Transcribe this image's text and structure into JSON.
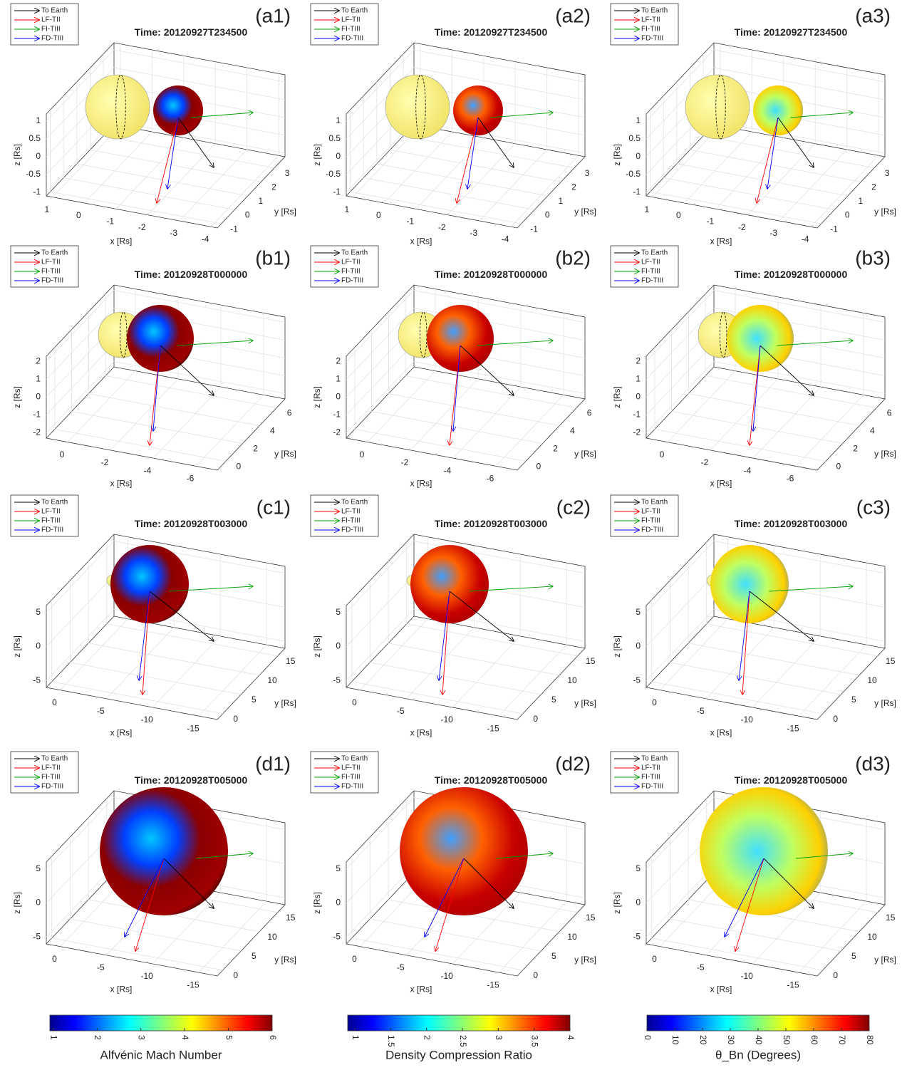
{
  "chart_data": [
    {
      "type": "sphere3d",
      "panel_label": "(a1)",
      "title": "Time: 20120927T234500",
      "series": [
        {
          "name": "To Earth",
          "color": "#000000"
        },
        {
          "name": "LF-TII",
          "color": "#ff0000"
        },
        {
          "name": "FI-TIII",
          "color": "#00a000"
        },
        {
          "name": "FD-TIII",
          "color": "#0000ff"
        }
      ],
      "xlabel": "x [Rs]",
      "ylabel": "y [Rs]",
      "zlabel": "z [Rs]",
      "xlim": [
        1.2,
        -4.2
      ],
      "xticks": [
        1,
        0,
        -1,
        -2,
        -3,
        -4
      ],
      "ylim": [
        -1.3,
        3.8
      ],
      "yticks": [
        -1,
        0,
        1,
        2,
        3
      ],
      "zlim": [
        -1.1,
        1.2
      ],
      "zticks": [
        -1,
        -0.5,
        0,
        0.5,
        1
      ]
    },
    {
      "type": "sphere3d",
      "panel_label": "(a2)",
      "title": "Time: 20120927T234500",
      "series": [
        {
          "name": "To Earth",
          "color": "#000000"
        },
        {
          "name": "LF-TII",
          "color": "#ff0000"
        },
        {
          "name": "FI-TIII",
          "color": "#00a000"
        },
        {
          "name": "FD-TIII",
          "color": "#0000ff"
        }
      ],
      "xlabel": "x [Rs]",
      "ylabel": "y [Rs]",
      "zlabel": "z [Rs]",
      "xlim": [
        1.2,
        -4.2
      ],
      "xticks": [
        1,
        0,
        -1,
        -2,
        -3,
        -4
      ],
      "ylim": [
        -1.3,
        3.8
      ],
      "yticks": [
        -1,
        0,
        1,
        2,
        3
      ],
      "zlim": [
        -1.1,
        1.2
      ],
      "zticks": [
        -1,
        -0.5,
        0,
        0.5,
        1
      ]
    },
    {
      "type": "sphere3d",
      "panel_label": "(a3)",
      "title": "Time: 20120927T234500",
      "series": [
        {
          "name": "To Earth",
          "color": "#000000"
        },
        {
          "name": "LF-TII",
          "color": "#ff0000"
        },
        {
          "name": "FI-TIII",
          "color": "#00a000"
        },
        {
          "name": "FD-TIII",
          "color": "#0000ff"
        }
      ],
      "xlabel": "x [Rs]",
      "ylabel": "y [Rs]",
      "zlabel": "z [Rs]",
      "xlim": [
        1.2,
        -4.2
      ],
      "xticks": [
        1,
        0,
        -1,
        -2,
        -3,
        -4
      ],
      "ylim": [
        -1.3,
        3.8
      ],
      "yticks": [
        -1,
        0,
        1,
        2,
        3
      ],
      "zlim": [
        -1.1,
        1.2
      ],
      "zticks": [
        -1,
        -0.5,
        0,
        0.5,
        1
      ]
    },
    {
      "type": "sphere3d",
      "panel_label": "(b1)",
      "title": "Time: 20120928T000000",
      "series": [
        {
          "name": "To Earth",
          "color": "#000000"
        },
        {
          "name": "LF-TII",
          "color": "#ff0000"
        },
        {
          "name": "FI-TIII",
          "color": "#00a000"
        },
        {
          "name": "FD-TIII",
          "color": "#0000ff"
        }
      ],
      "xlabel": "x [Rs]",
      "ylabel": "y [Rs]",
      "zlabel": "z [Rs]",
      "xlim": [
        1,
        -7
      ],
      "xticks": [
        0,
        -2,
        -4,
        -6
      ],
      "ylim": [
        -1,
        7
      ],
      "yticks": [
        0,
        2,
        4,
        6
      ],
      "zlim": [
        -2.3,
        2.3
      ],
      "zticks": [
        -2,
        -1,
        0,
        1,
        2
      ]
    },
    {
      "type": "sphere3d",
      "panel_label": "(b2)",
      "title": "Time: 20120928T000000",
      "series": [
        {
          "name": "To Earth",
          "color": "#000000"
        },
        {
          "name": "LF-TII",
          "color": "#ff0000"
        },
        {
          "name": "FI-TIII",
          "color": "#00a000"
        },
        {
          "name": "FD-TIII",
          "color": "#0000ff"
        }
      ],
      "xlabel": "x [Rs]",
      "ylabel": "y [Rs]",
      "zlabel": "z [Rs]",
      "xlim": [
        1,
        -7
      ],
      "xticks": [
        0,
        -2,
        -4,
        -6
      ],
      "ylim": [
        -1,
        7
      ],
      "yticks": [
        0,
        2,
        4,
        6
      ],
      "zlim": [
        -2.3,
        2.3
      ],
      "zticks": [
        -2,
        -1,
        0,
        1,
        2
      ]
    },
    {
      "type": "sphere3d",
      "panel_label": "(b3)",
      "title": "Time: 20120928T000000",
      "series": [
        {
          "name": "To Earth",
          "color": "#000000"
        },
        {
          "name": "LF-TII",
          "color": "#ff0000"
        },
        {
          "name": "FI-TIII",
          "color": "#00a000"
        },
        {
          "name": "FD-TIII",
          "color": "#0000ff"
        }
      ],
      "xlabel": "x [Rs]",
      "ylabel": "y [Rs]",
      "zlabel": "z [Rs]",
      "xlim": [
        1,
        -7
      ],
      "xticks": [
        0,
        -2,
        -4,
        -6
      ],
      "ylim": [
        -1,
        7
      ],
      "yticks": [
        0,
        2,
        4,
        6
      ],
      "zlim": [
        -2.3,
        2.3
      ],
      "zticks": [
        -2,
        -1,
        0,
        1,
        2
      ]
    },
    {
      "type": "sphere3d",
      "panel_label": "(c1)",
      "title": "Time: 20120928T003000",
      "series": [
        {
          "name": "To Earth",
          "color": "#000000"
        },
        {
          "name": "LF-TII",
          "color": "#ff0000"
        },
        {
          "name": "FI-TIII",
          "color": "#00a000"
        },
        {
          "name": "FD-TIII",
          "color": "#0000ff"
        }
      ],
      "xlabel": "x [Rs]",
      "ylabel": "y [Rs]",
      "zlabel": "z [Rs]",
      "xlim": [
        1.5,
        -17
      ],
      "xticks": [
        0,
        -5,
        -10,
        -15
      ],
      "ylim": [
        -1.5,
        17
      ],
      "yticks": [
        0,
        5,
        10,
        15
      ],
      "zlim": [
        -6,
        6
      ],
      "zticks": [
        -5,
        0,
        5
      ]
    },
    {
      "type": "sphere3d",
      "panel_label": "(c2)",
      "title": "Time: 20120928T003000",
      "series": [
        {
          "name": "To Earth",
          "color": "#000000"
        },
        {
          "name": "LF-TII",
          "color": "#ff0000"
        },
        {
          "name": "FI-TIII",
          "color": "#00a000"
        },
        {
          "name": "FD-TIII",
          "color": "#0000ff"
        }
      ],
      "xlabel": "x [Rs]",
      "ylabel": "y [Rs]",
      "zlabel": "z [Rs]",
      "xlim": [
        1.5,
        -17
      ],
      "xticks": [
        0,
        -5,
        -10,
        -15
      ],
      "ylim": [
        -1.5,
        17
      ],
      "yticks": [
        0,
        5,
        10,
        15
      ],
      "zlim": [
        -6,
        6
      ],
      "zticks": [
        -5,
        0,
        5
      ]
    },
    {
      "type": "sphere3d",
      "panel_label": "(c3)",
      "title": "Time: 20120928T003000",
      "series": [
        {
          "name": "To Earth",
          "color": "#000000"
        },
        {
          "name": "LF-TII",
          "color": "#ff0000"
        },
        {
          "name": "FI-TIII",
          "color": "#00a000"
        },
        {
          "name": "FD-TIII",
          "color": "#0000ff"
        }
      ],
      "xlabel": "x [Rs]",
      "ylabel": "y [Rs]",
      "zlabel": "z [Rs]",
      "xlim": [
        1.5,
        -17
      ],
      "xticks": [
        0,
        -5,
        -10,
        -15
      ],
      "ylim": [
        -1.5,
        17
      ],
      "yticks": [
        0,
        5,
        10,
        15
      ],
      "zlim": [
        -6,
        6
      ],
      "zticks": [
        -5,
        0,
        5
      ]
    },
    {
      "type": "sphere3d",
      "panel_label": "(d1)",
      "title": "Time: 20120928T005000",
      "series": [
        {
          "name": "To Earth",
          "color": "#000000"
        },
        {
          "name": "LF-TII",
          "color": "#ff0000"
        },
        {
          "name": "FI-TIII",
          "color": "#00a000"
        },
        {
          "name": "FD-TIII",
          "color": "#0000ff"
        }
      ],
      "xlabel": "x [Rs]",
      "ylabel": "y [Rs]",
      "zlabel": "z [Rs]",
      "xlim": [
        1.5,
        -17
      ],
      "xticks": [
        0,
        -5,
        -10,
        -15
      ],
      "ylim": [
        -1.5,
        17
      ],
      "yticks": [
        0,
        5,
        10,
        15
      ],
      "zlim": [
        -6,
        6
      ],
      "zticks": [
        -5,
        0,
        5
      ]
    },
    {
      "type": "sphere3d",
      "panel_label": "(d2)",
      "title": "Time: 20120928T005000",
      "series": [
        {
          "name": "To Earth",
          "color": "#000000"
        },
        {
          "name": "LF-TII",
          "color": "#ff0000"
        },
        {
          "name": "FI-TIII",
          "color": "#00a000"
        },
        {
          "name": "FD-TIII",
          "color": "#0000ff"
        }
      ],
      "xlabel": "x [Rs]",
      "ylabel": "y [Rs]",
      "zlabel": "z [Rs]",
      "xlim": [
        1.5,
        -17
      ],
      "xticks": [
        0,
        -5,
        -10,
        -15
      ],
      "ylim": [
        -1.5,
        17
      ],
      "yticks": [
        0,
        5,
        10,
        15
      ],
      "zlim": [
        -6,
        6
      ],
      "zticks": [
        -5,
        0,
        5
      ]
    },
    {
      "type": "sphere3d",
      "panel_label": "(d3)",
      "title": "Time: 20120928T005000",
      "series": [
        {
          "name": "To Earth",
          "color": "#000000"
        },
        {
          "name": "LF-TII",
          "color": "#ff0000"
        },
        {
          "name": "FI-TIII",
          "color": "#00a000"
        },
        {
          "name": "FD-TIII",
          "color": "#0000ff"
        }
      ],
      "xlabel": "x [Rs]",
      "ylabel": "y [Rs]",
      "zlabel": "z [Rs]",
      "xlim": [
        1.5,
        -17
      ],
      "xticks": [
        0,
        -5,
        -10,
        -15
      ],
      "ylim": [
        -1.5,
        17
      ],
      "yticks": [
        0,
        5,
        10,
        15
      ],
      "zlim": [
        -6,
        6
      ],
      "zticks": [
        -5,
        0,
        5
      ]
    },
    {
      "type": "colorbar",
      "label": "Alfvénic Mach Number",
      "lim": [
        0.92,
        6
      ],
      "ticks": [
        1,
        2,
        3,
        4,
        5,
        6
      ],
      "colormap": "jet"
    },
    {
      "type": "colorbar",
      "label": "Density Compression Ratio",
      "lim": [
        0.9,
        4
      ],
      "ticks": [
        1,
        1.5,
        2,
        2.5,
        3,
        3.5,
        4
      ],
      "colormap": "jet"
    },
    {
      "type": "colorbar",
      "label": "θ_Bn (Degrees)",
      "lim": [
        0,
        80
      ],
      "ticks": [
        0,
        10,
        20,
        30,
        40,
        50,
        60,
        70,
        80
      ],
      "colormap": "jet"
    }
  ]
}
